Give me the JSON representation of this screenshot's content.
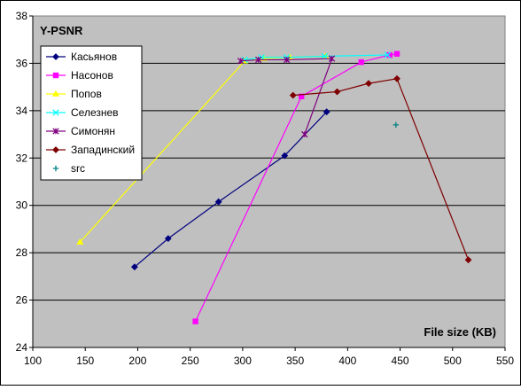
{
  "chart_data": {
    "type": "scatter",
    "title": "Y-PSNR",
    "xlabel": "File size (KB)",
    "ylabel": "",
    "xlim": [
      100,
      550
    ],
    "ylim": [
      24,
      38
    ],
    "x_ticks": [
      "100",
      "150",
      "200",
      "250",
      "300",
      "350",
      "400",
      "450",
      "500",
      "550"
    ],
    "y_ticks": [
      "24",
      "26",
      "28",
      "30",
      "32",
      "34",
      "36",
      "38"
    ],
    "grid": "horizontal",
    "legend_position": "top-left",
    "series": [
      {
        "name": "Касьянов",
        "color": "#00007F",
        "marker": "diamond",
        "line": true,
        "x": [
          197,
          229,
          277,
          340,
          380
        ],
        "y": [
          27.4,
          28.6,
          30.15,
          32.1,
          33.95
        ]
      },
      {
        "name": "Насонов",
        "color": "#FF00FF",
        "marker": "square",
        "line": true,
        "x": [
          255,
          356,
          413,
          440,
          447
        ],
        "y": [
          25.1,
          34.6,
          36.05,
          36.35,
          36.4
        ]
      },
      {
        "name": "Попов",
        "color": "#FFFF00",
        "marker": "triangle",
        "line": true,
        "x": [
          145,
          302,
          320,
          345,
          379
        ],
        "y": [
          28.45,
          36.1,
          36.2,
          36.25,
          36.3
        ]
      },
      {
        "name": "Селезнев",
        "color": "#00FFFF",
        "marker": "x",
        "line": true,
        "x": [
          302,
          318,
          342,
          378,
          438
        ],
        "y": [
          36.15,
          36.25,
          36.25,
          36.3,
          36.35
        ]
      },
      {
        "name": "Симонян",
        "color": "#7F007F",
        "marker": "star",
        "line": true,
        "x": [
          298,
          315,
          342,
          385,
          359
        ],
        "y": [
          36.1,
          36.15,
          36.15,
          36.2,
          33.0
        ]
      },
      {
        "name": "Западинский",
        "color": "#7F0000",
        "marker": "diamond",
        "line": true,
        "x": [
          348,
          390,
          420,
          447,
          515
        ],
        "y": [
          34.65,
          34.8,
          35.15,
          35.35,
          27.7
        ]
      },
      {
        "name": "src",
        "color": "#008080",
        "marker": "plus",
        "line": false,
        "x": [
          446
        ],
        "y": [
          33.4
        ]
      }
    ]
  }
}
